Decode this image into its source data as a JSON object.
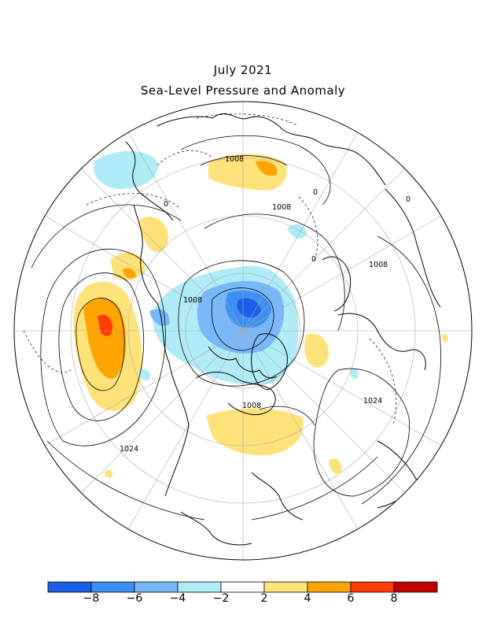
{
  "title": "July 2021",
  "subtitle": "Sea-Level Pressure and Anomaly",
  "colors": {
    "scale": [
      "#1c5fe6",
      "#3d8ff4",
      "#78b8fa",
      "#b0ecf7",
      "#ffffff",
      "#ffe27a",
      "#ffa400",
      "#ff3b00",
      "#c00000"
    ],
    "outline": "#000000",
    "grid": "#a9a9a9"
  },
  "colorbar": {
    "tick_labels": [
      "−8",
      "−6",
      "−4",
      "−2",
      "2",
      "4",
      "6",
      "8"
    ]
  },
  "contour_labels": {
    "l1008_a": "1008",
    "l1008_b": "1008",
    "l1008_c": "1008",
    "l1008_d": "1008",
    "l1008_e": "1008",
    "l1024_a": "1024",
    "l1024_b": "1024",
    "l0_a": "0",
    "l0_b": "0",
    "l0_c": "0",
    "l0_d": "0"
  }
}
